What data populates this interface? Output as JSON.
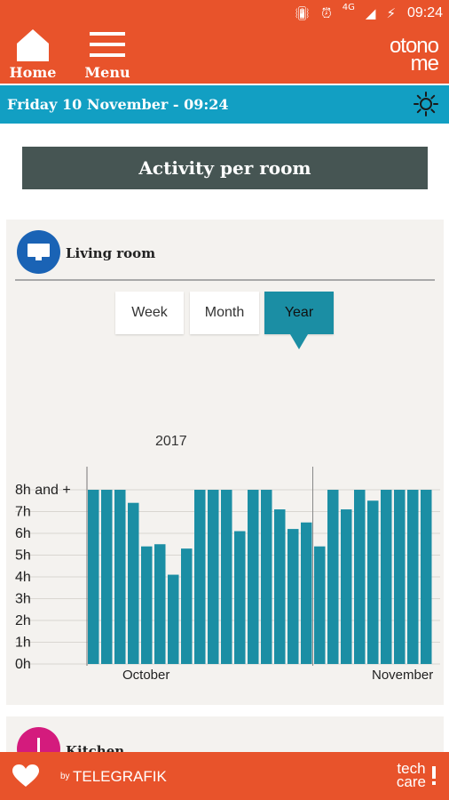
{
  "status_bar": {
    "time": "09:24",
    "network": "4G"
  },
  "nav": {
    "home_label": "Home",
    "menu_label": "Menu"
  },
  "brand": {
    "line1": "otono",
    "line2": "me"
  },
  "date_bar": {
    "text": "Friday 10 November - 09:24",
    "icon": "sun-icon"
  },
  "page_title": "Activity per room",
  "rooms": [
    {
      "name": "Living room",
      "icon": "monitor-icon",
      "icon_color": "#1a63b5",
      "periods": [
        "Week",
        "Month",
        "Year"
      ],
      "selected_period": "Year",
      "year_label": "2017"
    },
    {
      "name": "Kitchen",
      "icon": "fork-icon",
      "icon_color": "#d41b7d"
    }
  ],
  "footer": {
    "by": "by",
    "company": "TELEGRAFIK",
    "product_line1": "tech",
    "product_line2": "care",
    "icon": "heart-icon"
  },
  "colors": {
    "primary": "#e8532b",
    "date_bar": "#129fc3",
    "bar": "#1b8ea4",
    "title_bg": "#465553"
  },
  "chart_data": {
    "type": "bar",
    "title": "",
    "xlabel": "",
    "ylabel": "",
    "y_ticks": [
      "0h",
      "1h",
      "2h",
      "3h",
      "4h",
      "5h",
      "6h",
      "7h",
      "8h and +"
    ],
    "ylim": [
      0,
      8
    ],
    "month_labels": [
      "October",
      "November"
    ],
    "series": [
      {
        "values": [
          8,
          8,
          8,
          7.4,
          5.4,
          5.5,
          4.1,
          5.3,
          8,
          8,
          8,
          6.1,
          8,
          8,
          7.1,
          6.2,
          6.5,
          5.4,
          8,
          7.1,
          8,
          7.5,
          8,
          8,
          8,
          8
        ]
      }
    ]
  }
}
